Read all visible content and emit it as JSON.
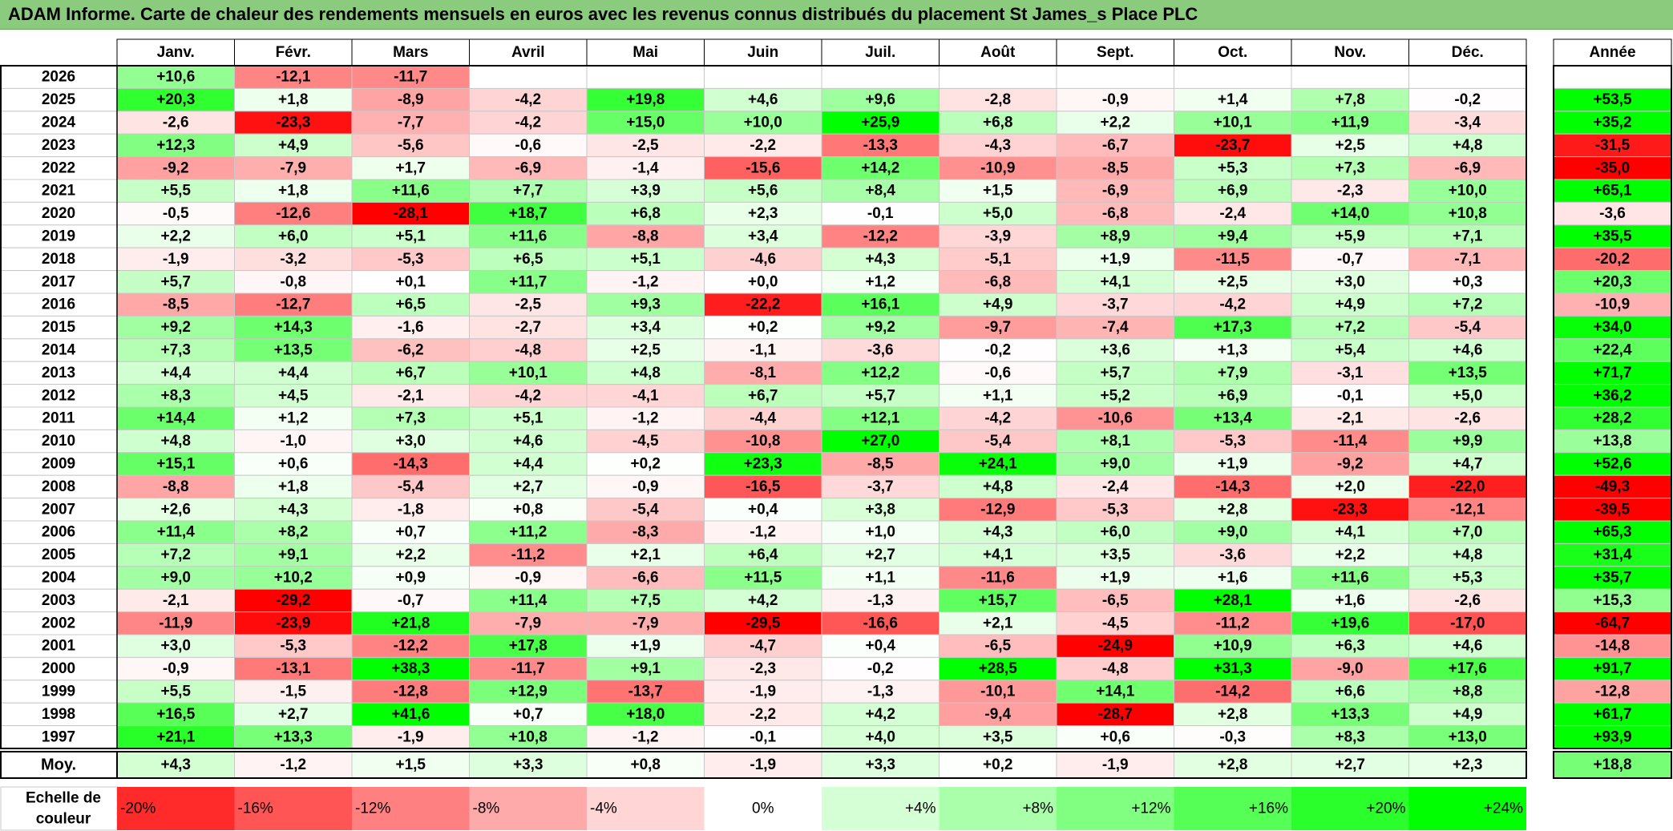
{
  "title": "ADAM Informe. Carte de chaleur des rendements mensuels en euros avec les revenus connus distribués du placement St James_s Place PLC",
  "chart_data": {
    "type": "heatmap",
    "months": [
      "Janv.",
      "Févr.",
      "Mars",
      "Avril",
      "Mai",
      "Juin",
      "Juil.",
      "Août",
      "Sept.",
      "Oct.",
      "Nov.",
      "Déc."
    ],
    "year_header": "Année",
    "rows": [
      {
        "year": "2026",
        "values": [
          "+10,6",
          "-12,1",
          "-11,7",
          "",
          "",
          "",
          "",
          "",
          "",
          "",
          "",
          ""
        ],
        "annual": ""
      },
      {
        "year": "2025",
        "values": [
          "+20,3",
          "+1,8",
          "-8,9",
          "-4,2",
          "+19,8",
          "+4,6",
          "+9,6",
          "-2,8",
          "-0,9",
          "+1,4",
          "+7,8",
          "-0,2"
        ],
        "annual": "+53,5"
      },
      {
        "year": "2024",
        "values": [
          "-2,6",
          "-23,3",
          "-7,7",
          "-4,2",
          "+15,0",
          "+10,0",
          "+25,9",
          "+6,8",
          "+2,2",
          "+10,1",
          "+11,9",
          "-3,4"
        ],
        "annual": "+35,2"
      },
      {
        "year": "2023",
        "values": [
          "+12,3",
          "+4,9",
          "-5,6",
          "-0,6",
          "-2,5",
          "-2,2",
          "-13,3",
          "-4,3",
          "-6,7",
          "-23,7",
          "+2,5",
          "+4,8"
        ],
        "annual": "-31,5"
      },
      {
        "year": "2022",
        "values": [
          "-9,2",
          "-7,9",
          "+1,7",
          "-6,9",
          "-1,4",
          "-15,6",
          "+14,2",
          "-10,9",
          "-8,5",
          "+5,3",
          "+7,3",
          "-6,9"
        ],
        "annual": "-35,0"
      },
      {
        "year": "2021",
        "values": [
          "+5,5",
          "+1,8",
          "+11,6",
          "+7,7",
          "+3,9",
          "+5,6",
          "+8,4",
          "+1,5",
          "-6,9",
          "+6,9",
          "-2,3",
          "+10,0"
        ],
        "annual": "+65,1"
      },
      {
        "year": "2020",
        "values": [
          "-0,5",
          "-12,6",
          "-28,1",
          "+18,7",
          "+6,8",
          "+2,3",
          "-0,1",
          "+5,0",
          "-6,8",
          "-2,4",
          "+14,0",
          "+10,8"
        ],
        "annual": "-3,6"
      },
      {
        "year": "2019",
        "values": [
          "+2,2",
          "+6,0",
          "+5,1",
          "+11,6",
          "-8,8",
          "+3,4",
          "-12,2",
          "-3,9",
          "+8,9",
          "+9,4",
          "+5,9",
          "+7,1"
        ],
        "annual": "+35,5"
      },
      {
        "year": "2018",
        "values": [
          "-1,9",
          "-3,2",
          "-5,3",
          "+6,5",
          "+5,1",
          "-4,6",
          "+4,3",
          "-5,1",
          "+1,9",
          "-11,5",
          "-0,7",
          "-7,1"
        ],
        "annual": "-20,2"
      },
      {
        "year": "2017",
        "values": [
          "+5,7",
          "-0,8",
          "+0,1",
          "+11,7",
          "-1,2",
          "+0,0",
          "+1,2",
          "-6,8",
          "+4,1",
          "+2,5",
          "+3,0",
          "+0,3"
        ],
        "annual": "+20,3"
      },
      {
        "year": "2016",
        "values": [
          "-8,5",
          "-12,7",
          "+6,5",
          "-2,5",
          "+9,3",
          "-22,2",
          "+16,1",
          "+4,9",
          "-3,7",
          "-4,2",
          "+4,9",
          "+7,2"
        ],
        "annual": "-10,9"
      },
      {
        "year": "2015",
        "values": [
          "+9,2",
          "+14,3",
          "-1,6",
          "-2,7",
          "+3,4",
          "+0,2",
          "+9,2",
          "-9,7",
          "-7,4",
          "+17,3",
          "+7,2",
          "-5,4"
        ],
        "annual": "+34,0"
      },
      {
        "year": "2014",
        "values": [
          "+7,3",
          "+13,5",
          "-6,2",
          "-4,8",
          "+2,5",
          "-1,1",
          "-3,6",
          "-0,2",
          "+3,6",
          "+1,3",
          "+5,4",
          "+4,6"
        ],
        "annual": "+22,4"
      },
      {
        "year": "2013",
        "values": [
          "+4,4",
          "+4,4",
          "+6,7",
          "+10,1",
          "+4,8",
          "-8,1",
          "+12,2",
          "-0,6",
          "+5,7",
          "+7,9",
          "-3,1",
          "+13,5"
        ],
        "annual": "+71,7"
      },
      {
        "year": "2012",
        "values": [
          "+8,3",
          "+4,5",
          "-2,1",
          "-4,2",
          "-4,1",
          "+6,7",
          "+5,7",
          "+1,1",
          "+5,2",
          "+6,9",
          "-0,1",
          "+5,0"
        ],
        "annual": "+36,2"
      },
      {
        "year": "2011",
        "values": [
          "+14,4",
          "+1,2",
          "+7,3",
          "+5,1",
          "-1,2",
          "-4,4",
          "+12,1",
          "-4,2",
          "-10,6",
          "+13,4",
          "-2,1",
          "-2,6"
        ],
        "annual": "+28,2"
      },
      {
        "year": "2010",
        "values": [
          "+4,8",
          "-1,0",
          "+3,0",
          "+4,6",
          "-4,5",
          "-10,8",
          "+27,0",
          "-5,4",
          "+8,1",
          "-5,3",
          "-11,4",
          "+9,9"
        ],
        "annual": "+13,8"
      },
      {
        "year": "2009",
        "values": [
          "+15,1",
          "+0,6",
          "-14,3",
          "+4,4",
          "+0,2",
          "+23,3",
          "-8,5",
          "+24,1",
          "+9,0",
          "+1,9",
          "-9,2",
          "+4,7"
        ],
        "annual": "+52,6"
      },
      {
        "year": "2008",
        "values": [
          "-8,8",
          "+1,8",
          "-5,4",
          "+2,7",
          "-0,9",
          "-16,5",
          "-3,7",
          "+4,8",
          "-2,4",
          "-14,3",
          "+2,0",
          "-22,0"
        ],
        "annual": "-49,3"
      },
      {
        "year": "2007",
        "values": [
          "+2,6",
          "+4,3",
          "-1,8",
          "+0,8",
          "-5,4",
          "+0,4",
          "+3,8",
          "-12,9",
          "-5,3",
          "+2,8",
          "-23,3",
          "-12,1"
        ],
        "annual": "-39,5"
      },
      {
        "year": "2006",
        "values": [
          "+11,4",
          "+8,2",
          "+0,7",
          "+11,2",
          "-8,3",
          "-1,2",
          "+1,0",
          "+4,3",
          "+6,0",
          "+9,0",
          "+4,1",
          "+7,0"
        ],
        "annual": "+65,3"
      },
      {
        "year": "2005",
        "values": [
          "+7,2",
          "+9,1",
          "+2,2",
          "-11,2",
          "+2,1",
          "+6,4",
          "+2,7",
          "+4,1",
          "+3,5",
          "-3,6",
          "+2,2",
          "+4,8"
        ],
        "annual": "+31,4"
      },
      {
        "year": "2004",
        "values": [
          "+9,0",
          "+10,2",
          "+0,9",
          "-0,9",
          "-6,6",
          "+11,5",
          "+1,1",
          "-11,6",
          "+1,9",
          "+1,6",
          "+11,6",
          "+5,3"
        ],
        "annual": "+35,7"
      },
      {
        "year": "2003",
        "values": [
          "-2,1",
          "-29,2",
          "-0,7",
          "+11,4",
          "+7,5",
          "+4,2",
          "-1,3",
          "+15,7",
          "-6,5",
          "+28,1",
          "+1,6",
          "-2,6"
        ],
        "annual": "+15,3"
      },
      {
        "year": "2002",
        "values": [
          "-11,9",
          "-23,9",
          "+21,8",
          "-7,9",
          "-7,9",
          "-29,5",
          "-16,6",
          "+2,1",
          "-4,5",
          "-11,2",
          "+19,6",
          "-17,0"
        ],
        "annual": "-64,7"
      },
      {
        "year": "2001",
        "values": [
          "+3,0",
          "-5,3",
          "-12,2",
          "+17,8",
          "+1,9",
          "-4,7",
          "+0,4",
          "-6,5",
          "-24,9",
          "+10,9",
          "+6,3",
          "+4,6"
        ],
        "annual": "-14,8"
      },
      {
        "year": "2000",
        "values": [
          "-0,9",
          "-13,1",
          "+38,3",
          "-11,7",
          "+9,1",
          "-2,3",
          "-0,2",
          "+28,5",
          "-4,8",
          "+31,3",
          "-9,0",
          "+17,6"
        ],
        "annual": "+91,7"
      },
      {
        "year": "1999",
        "values": [
          "+5,5",
          "-1,5",
          "-12,8",
          "+12,9",
          "-13,7",
          "-1,9",
          "-1,3",
          "-10,1",
          "+14,1",
          "-14,2",
          "+6,6",
          "+8,8"
        ],
        "annual": "-12,8"
      },
      {
        "year": "1998",
        "values": [
          "+16,5",
          "+2,7",
          "+41,6",
          "+0,7",
          "+18,0",
          "-2,2",
          "+4,2",
          "-9,4",
          "-28,7",
          "+2,8",
          "+13,3",
          "+4,9"
        ],
        "annual": "+61,7"
      },
      {
        "year": "1997",
        "values": [
          "+21,1",
          "+13,3",
          "-1,9",
          "+10,8",
          "-1,2",
          "-0,1",
          "+4,0",
          "+3,5",
          "+0,6",
          "-0,3",
          "+8,3",
          "+13,0"
        ],
        "annual": "+93,9"
      }
    ],
    "average": {
      "label": "Moy.",
      "values": [
        "+4,3",
        "-1,2",
        "+1,5",
        "+3,3",
        "+0,8",
        "-1,9",
        "+3,3",
        "+0,2",
        "-1,9",
        "+2,8",
        "+2,7",
        "+2,3"
      ],
      "annual": "+18,8"
    },
    "scale": {
      "label_line1": "Echelle de",
      "label_line2": "couleur",
      "steps": [
        "-20%",
        "-16%",
        "-12%",
        "-8%",
        "-4%",
        "0%",
        "+4%",
        "+8%",
        "+12%",
        "+16%",
        "+20%",
        "+24%"
      ],
      "step_values": [
        -20,
        -16,
        -12,
        -8,
        -4,
        0,
        4,
        8,
        12,
        16,
        20,
        24
      ]
    },
    "colors": {
      "title_bar": "#8bcb7e",
      "negative": "#ff0000",
      "neutral": "#ffffff",
      "positive": "#00ff00",
      "grid": "#c8c8c8",
      "border": "#000000"
    }
  }
}
